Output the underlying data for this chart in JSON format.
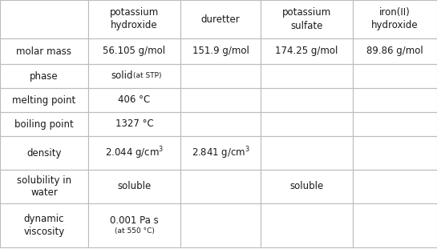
{
  "col_headers": [
    "",
    "potassium\nhydroxide",
    "duretter",
    "potassium\nsulfate",
    "iron(II)\nhydroxide"
  ],
  "row_headers": [
    "molar mass",
    "phase",
    "melting point",
    "boiling point",
    "density",
    "solubility in\nwater",
    "dynamic\nviscosity"
  ],
  "cells": [
    [
      "56.105 g/mol",
      "151.9 g/mol",
      "174.25 g/mol",
      "89.86 g/mol"
    ],
    [
      "solid_(at STP)",
      "",
      "",
      ""
    ],
    [
      "406 °C",
      "",
      "",
      ""
    ],
    [
      "1327 °C",
      "",
      "",
      ""
    ],
    [
      "2.044 g/cm^3",
      "2.841 g/cm^3",
      "",
      ""
    ],
    [
      "soluble",
      "",
      "soluble",
      ""
    ],
    [
      "0.001 Pa s_(at 550 °C)",
      "",
      "",
      ""
    ]
  ],
  "bg_color": "#ffffff",
  "line_color": "#bbbbbb",
  "text_color": "#1a1a1a",
  "header_fontsize": 8.5,
  "cell_fontsize": 8.5,
  "small_fontsize": 6.5
}
